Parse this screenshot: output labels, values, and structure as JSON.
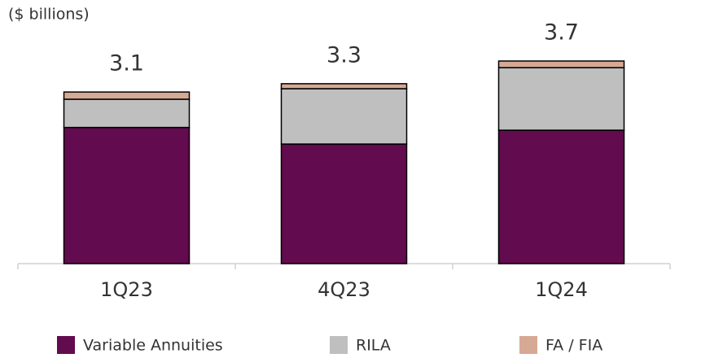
{
  "chart_data": {
    "type": "stacked-bar",
    "subtitle": "($ billions)",
    "categories": [
      "1Q23",
      "4Q23",
      "1Q24"
    ],
    "series": [
      {
        "name": "Variable Annuities",
        "color": "#630b4f",
        "values": [
          2.46,
          2.16,
          2.41
        ]
      },
      {
        "name": "RILA",
        "color": "#bfbfbf",
        "values": [
          0.51,
          1.0,
          1.13
        ]
      },
      {
        "name": "FA / FIA",
        "color": "#d6a994",
        "values": [
          0.13,
          0.09,
          0.12
        ]
      }
    ],
    "totals": [
      3.1,
      3.3,
      3.7
    ]
  }
}
